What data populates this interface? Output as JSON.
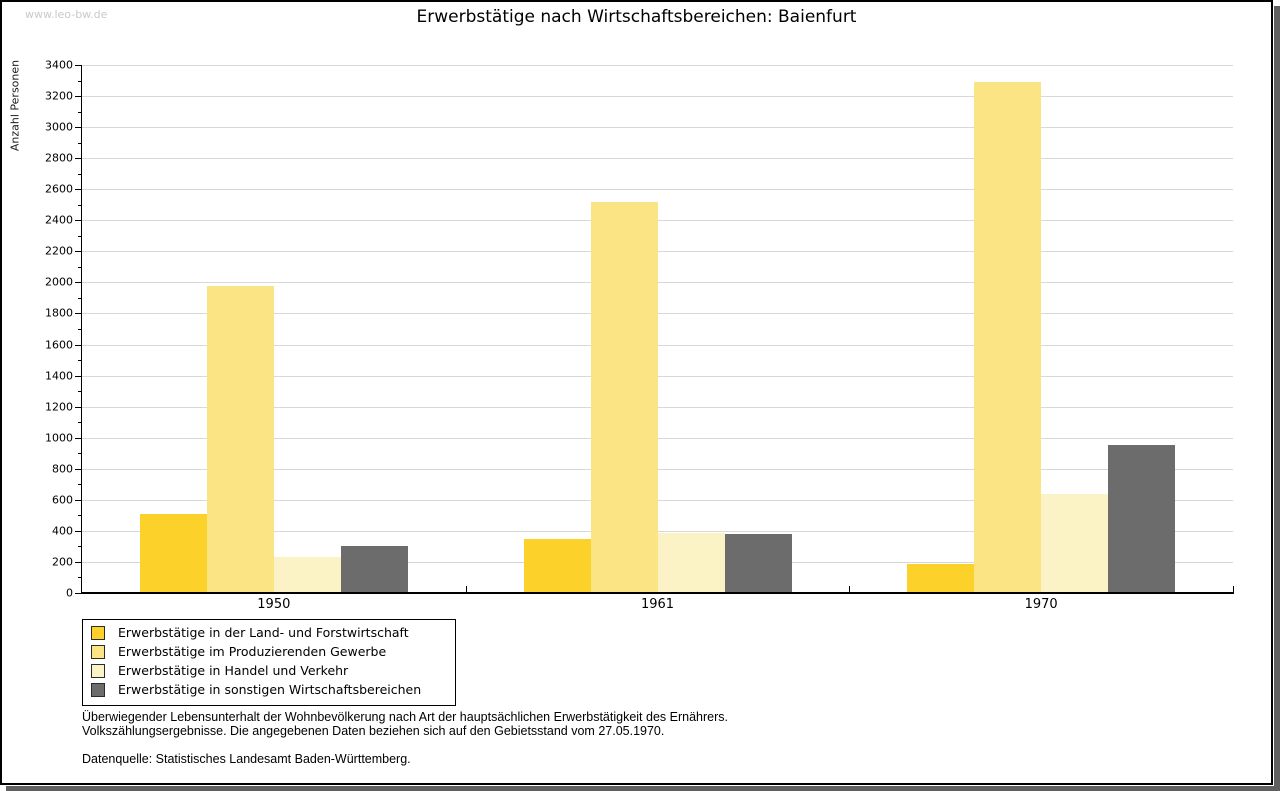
{
  "page": {
    "watermark": "www.leo-bw.de",
    "footnote_line1": "Überwiegender Lebensunterhalt der Wohnbevölkerung nach Art der hauptsächlichen Erwerbstätigkeit des Ernährers.",
    "footnote_line2": "Volkszählungsergebnisse. Die angegebenen Daten beziehen sich auf den Gebietsstand vom 27.05.1970.",
    "source": "Datenquelle: Statistisches Landesamt Baden-Württemberg."
  },
  "chart_data": {
    "type": "bar",
    "title": "Erwerbstätige nach Wirtschaftsbereichen: Baienfurt",
    "xlabel": "",
    "ylabel": "Anzahl Personen",
    "categories": [
      "1950",
      "1961",
      "1970"
    ],
    "series": [
      {
        "name": "Erwerbstätige in der Land- und Forstwirtschaft",
        "color": "#fcd22a",
        "values": [
          510,
          350,
          185
        ]
      },
      {
        "name": "Erwerbstätige im Produzierenden Gewerbe",
        "color": "#fbe483",
        "values": [
          1980,
          2520,
          3290
        ]
      },
      {
        "name": "Erwerbstätige in Handel und Verkehr",
        "color": "#fbf3c5",
        "values": [
          230,
          385,
          640
        ]
      },
      {
        "name": "Erwerbstätige in sonstigen Wirtschaftsbereichen",
        "color": "#6c6c6c",
        "values": [
          300,
          380,
          950
        ]
      }
    ],
    "ylim": [
      0,
      3400
    ],
    "ytick_step": 200,
    "minor_ytick_step": 100,
    "grid": true,
    "gridline_color": "#d8d8d8",
    "legend_position": "bottom-left"
  }
}
